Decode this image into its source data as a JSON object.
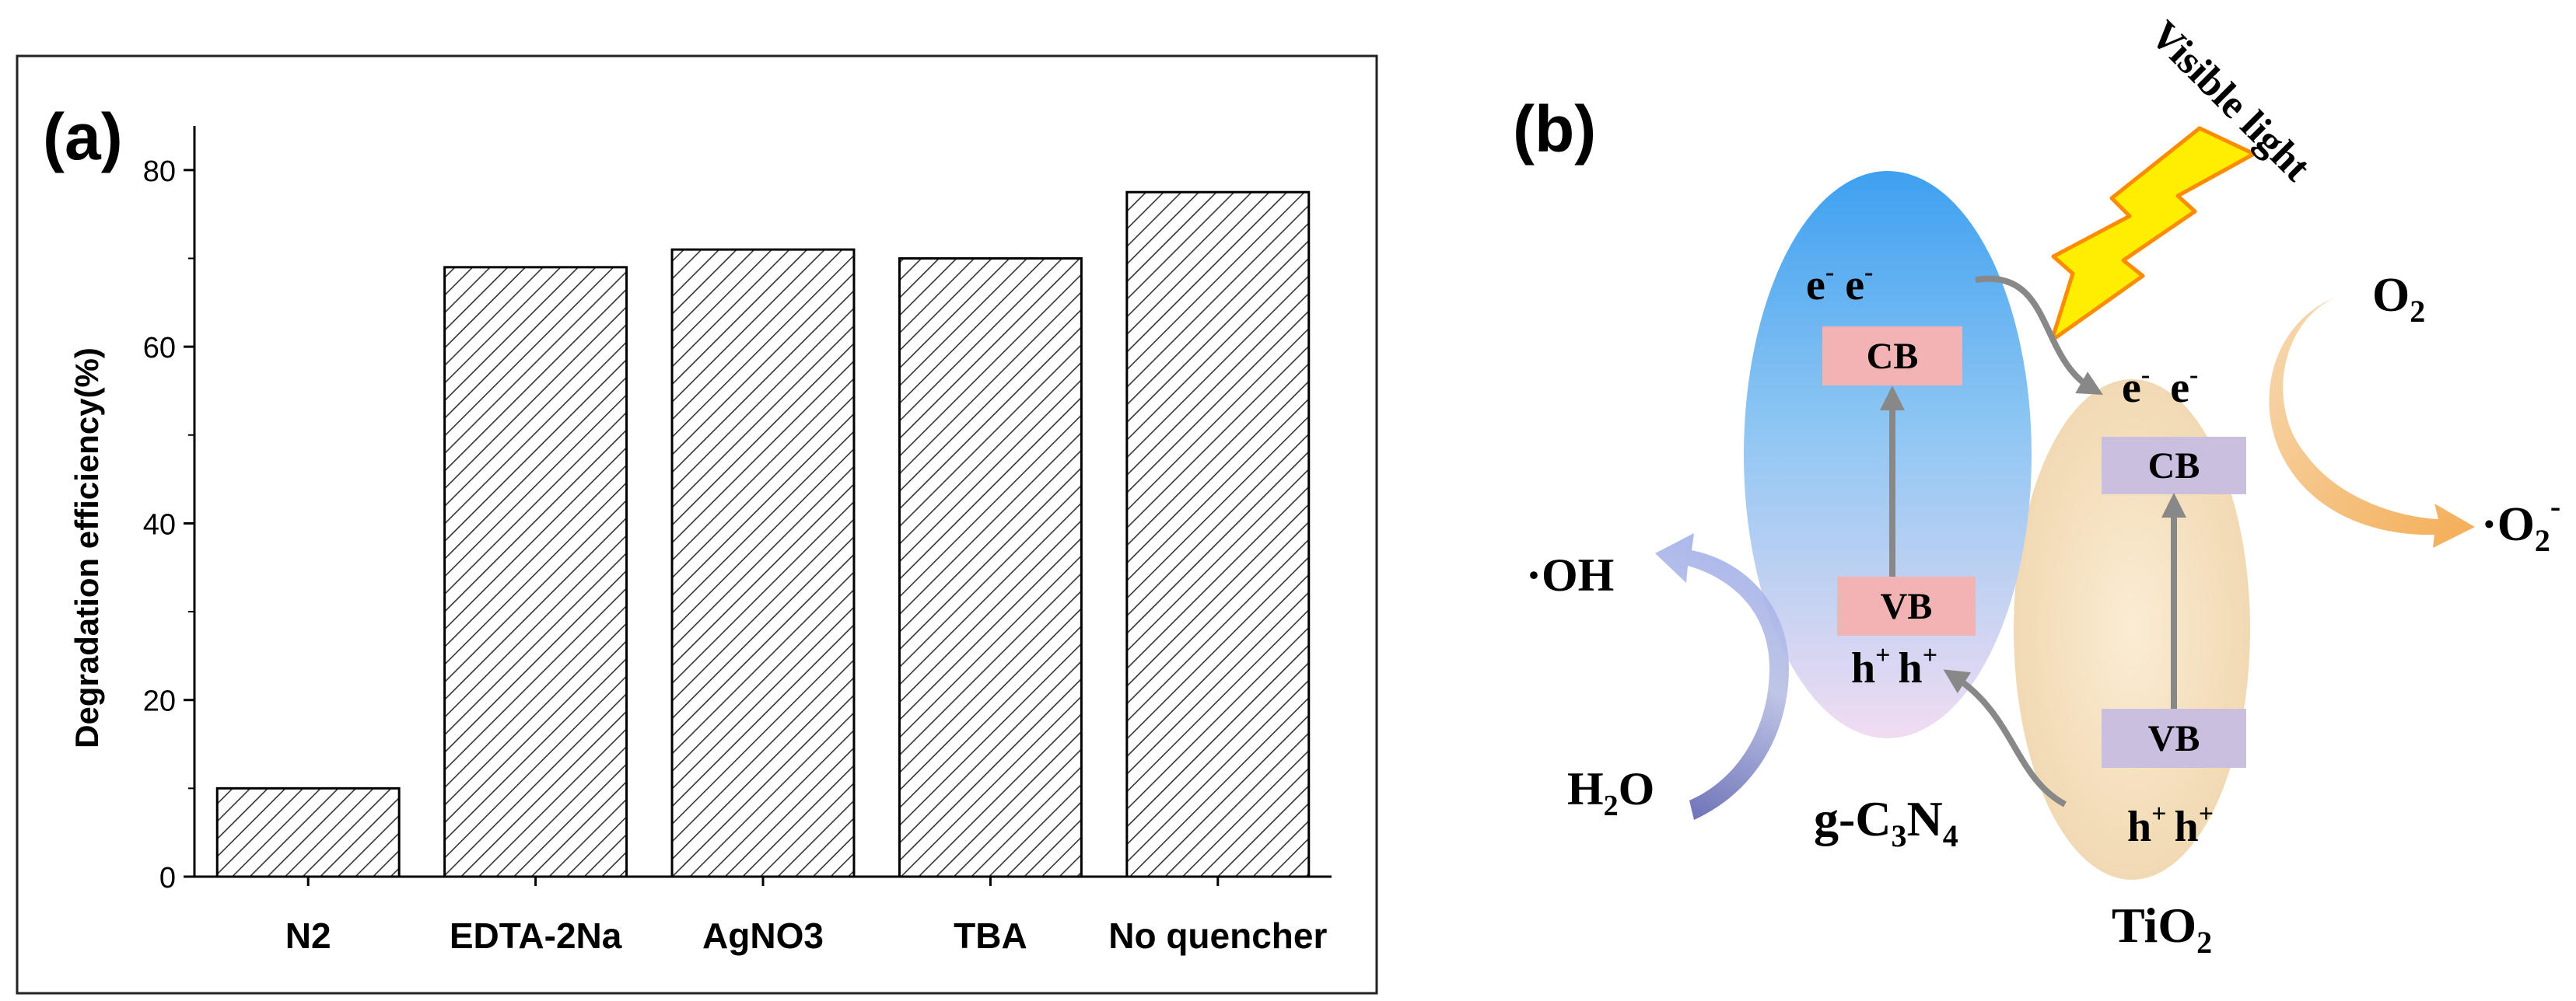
{
  "chart_data": [
    {
      "type": "bar",
      "panel_label": "(a)",
      "categories": [
        "N2",
        "EDTA-2Na",
        "AgNO3",
        "TBA",
        "No quencher"
      ],
      "values": [
        10,
        69,
        71,
        70,
        77.5
      ],
      "ylabel": "Degradation efficiency(%)",
      "xlabel": "",
      "ylim": [
        0,
        85
      ],
      "yticks": [
        0,
        20,
        40,
        60,
        80
      ],
      "bar_fill": "diagonal-hatch",
      "grid": false
    }
  ],
  "diagram": {
    "panel_label": "(b)",
    "light_label": "Visible light",
    "left": {
      "material": {
        "base": "g-C",
        "s1": "3",
        "mid": "N",
        "s2": "4"
      },
      "cb": "CB",
      "vb": "VB",
      "electrons": [
        "e",
        "e"
      ],
      "holes": [
        "h",
        "h"
      ],
      "color_top": "#3ea0f0",
      "color_bottom": "#f1dcf2"
    },
    "right": {
      "material": {
        "base": "TiO",
        "s1": "2"
      },
      "cb": "CB",
      "vb": "VB",
      "electrons": [
        "e",
        "e"
      ],
      "holes": [
        "h",
        "h"
      ],
      "color": "#f6e3c2"
    },
    "reactions": {
      "o2": {
        "base": "O",
        "sub": "2"
      },
      "superoxide": {
        "dot": "·",
        "base": "O",
        "sub": "2",
        "sup": "-"
      },
      "hydroxyl": {
        "dot": "·",
        "base": "OH"
      },
      "water": {
        "a": "H",
        "sub": "2",
        "b": "O"
      }
    },
    "colors": {
      "left_band_box": "#f1b3b3",
      "right_band_box": "#cbbfe0",
      "transfer_arrow": "#888888",
      "lightning": "#ffee00",
      "lightning_edge": "#ff8c00",
      "o2_arrow": "#f4b266",
      "oh_arrow": "#7d80c0"
    }
  }
}
